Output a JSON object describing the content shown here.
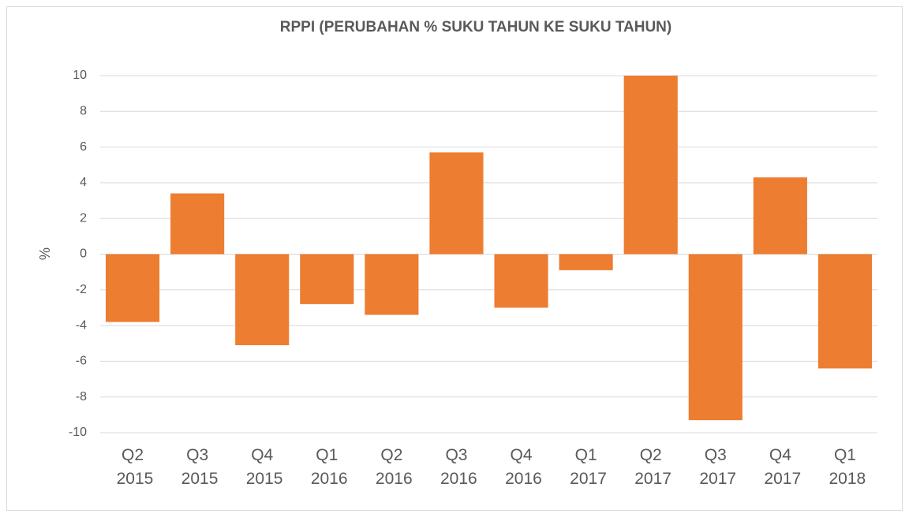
{
  "chart_data": {
    "type": "bar",
    "title": "RPPI (PERUBAHAN % SUKU TAHUN KE SUKU TAHUN)",
    "y_label": "%",
    "categories": [
      "Q2 2015",
      "Q3 2015",
      "Q4 2015",
      "Q1 2016",
      "Q2 2016",
      "Q3 2016",
      "Q4 2016",
      "Q1 2017",
      "Q2 2017",
      "Q3 2017",
      "Q4 2017",
      "Q1 2018"
    ],
    "values": [
      -3.8,
      3.4,
      -5.1,
      -2.8,
      -3.4,
      5.7,
      -3.0,
      -0.9,
      10.0,
      -9.3,
      4.3,
      -6.4
    ],
    "color": "#ed7d31",
    "ylim": [
      -10,
      10
    ],
    "yticks": [
      -10,
      -8,
      -6,
      -4,
      -2,
      0,
      2,
      4,
      6,
      8,
      10
    ],
    "grid": true
  }
}
